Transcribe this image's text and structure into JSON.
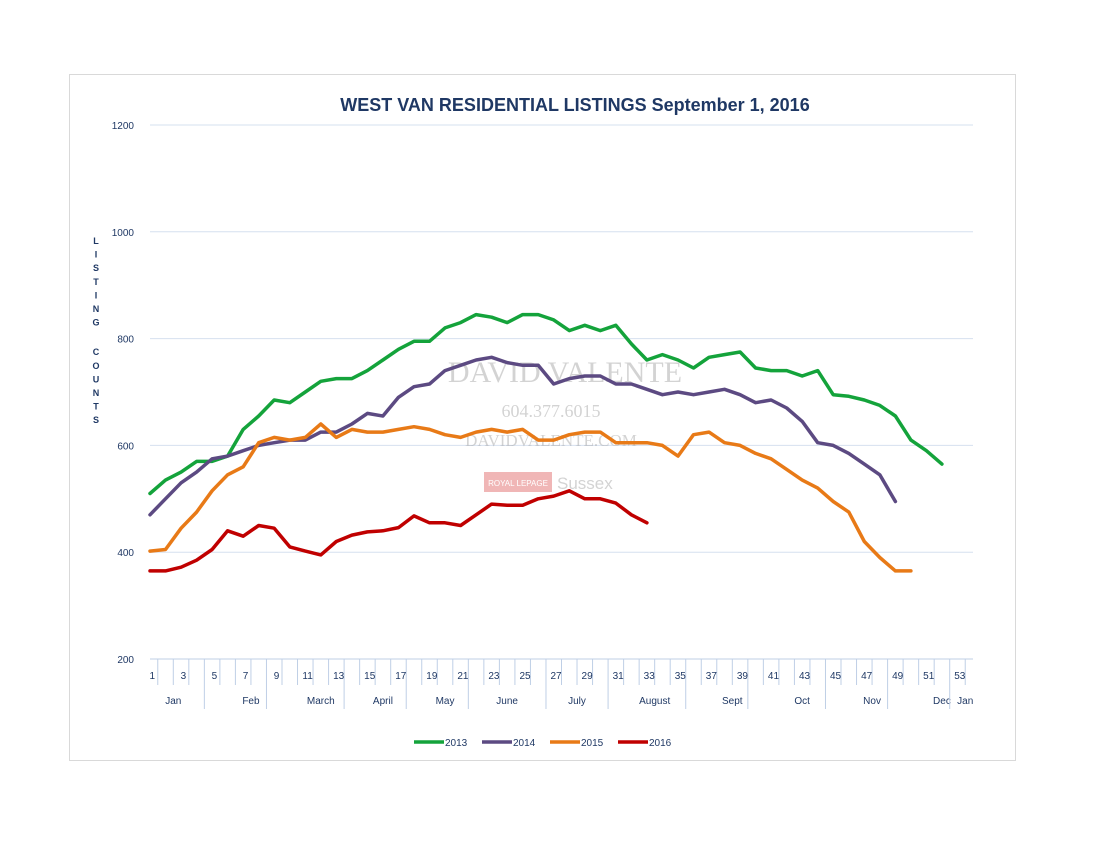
{
  "chart_data": {
    "type": "line",
    "title": "WEST VAN RESIDENTIAL LISTINGS September 1, 2016",
    "ylabel": "LISTING COUNTS",
    "xlabel": "",
    "ylim": [
      200,
      1200
    ],
    "yticks": [
      200,
      400,
      600,
      800,
      1000,
      1200
    ],
    "xlim": [
      1,
      54
    ],
    "xticks": [
      "1",
      "3",
      "5",
      "7",
      "9",
      "11",
      "13",
      "15",
      "17",
      "19",
      "21",
      "23",
      "25",
      "27",
      "29",
      "31",
      "33",
      "35",
      "37",
      "39",
      "41",
      "43",
      "45",
      "47",
      "49",
      "51",
      "53"
    ],
    "months": [
      {
        "label": "Jan",
        "center": 2.5,
        "start": 1
      },
      {
        "label": "Feb",
        "center": 7.5,
        "start": 5
      },
      {
        "label": "March",
        "center": 12.0,
        "start": 9
      },
      {
        "label": "April",
        "center": 16.0,
        "start": 14
      },
      {
        "label": "May",
        "center": 20.0,
        "start": 18
      },
      {
        "label": "June",
        "center": 24.0,
        "start": 22
      },
      {
        "label": "July",
        "center": 28.5,
        "start": 27
      },
      {
        "label": "August",
        "center": 33.5,
        "start": 31
      },
      {
        "label": "Sept",
        "center": 38.5,
        "start": 36
      },
      {
        "label": "Oct",
        "center": 43.0,
        "start": 40
      },
      {
        "label": "Nov",
        "center": 47.5,
        "start": 45
      },
      {
        "label": "Dec",
        "center": 52.0,
        "start": 49
      },
      {
        "label": "Jan",
        "center": 53.5,
        "start": 53
      }
    ],
    "gridlines": "horizontal",
    "legend_position": "bottom",
    "series": [
      {
        "name": "2013",
        "color": "#14a33b",
        "start_week": 1,
        "values": [
          510,
          535,
          550,
          570,
          570,
          580,
          630,
          655,
          685,
          680,
          700,
          720,
          725,
          725,
          740,
          760,
          780,
          795,
          795,
          820,
          830,
          845,
          840,
          830,
          845,
          845,
          835,
          815,
          825,
          815,
          825,
          790,
          760,
          770,
          760,
          745,
          765,
          770,
          775,
          745,
          740,
          740,
          730,
          740,
          695,
          692,
          685,
          675,
          655,
          610,
          590,
          565
        ]
      },
      {
        "name": "2014",
        "color": "#5c4a82",
        "start_week": 1,
        "values": [
          470,
          500,
          530,
          550,
          575,
          580,
          590,
          600,
          605,
          610,
          610,
          625,
          625,
          640,
          660,
          655,
          690,
          710,
          715,
          740,
          750,
          760,
          765,
          755,
          750,
          750,
          715,
          725,
          730,
          730,
          715,
          715,
          705,
          695,
          700,
          695,
          700,
          705,
          695,
          680,
          685,
          670,
          645,
          605,
          600,
          585,
          565,
          545,
          495
        ]
      },
      {
        "name": "2015",
        "color": "#e87a17",
        "start_week": 1,
        "values": [
          402,
          405,
          445,
          475,
          515,
          545,
          560,
          605,
          615,
          610,
          615,
          640,
          615,
          630,
          625,
          625,
          630,
          635,
          630,
          620,
          615,
          625,
          630,
          625,
          630,
          610,
          610,
          620,
          625,
          625,
          605,
          605,
          605,
          600,
          580,
          620,
          625,
          605,
          600,
          585,
          575,
          555,
          535,
          520,
          495,
          475,
          420,
          390,
          365,
          365
        ]
      },
      {
        "name": "2016",
        "color": "#c00000",
        "start_week": 1,
        "values": [
          365,
          365,
          372,
          385,
          405,
          440,
          430,
          450,
          445,
          410,
          402,
          395,
          420,
          432,
          438,
          440,
          446,
          468,
          455,
          455,
          450,
          470,
          490,
          488,
          488,
          500,
          505,
          515,
          500,
          500,
          492,
          470,
          455
        ]
      }
    ]
  },
  "watermark": {
    "name": "DAVID VALENTE",
    "phone": "604.377.6015",
    "website": "DAVIDVALENTE.COM",
    "brand": "ROYAL LEPAGE",
    "office": "Sussex"
  }
}
